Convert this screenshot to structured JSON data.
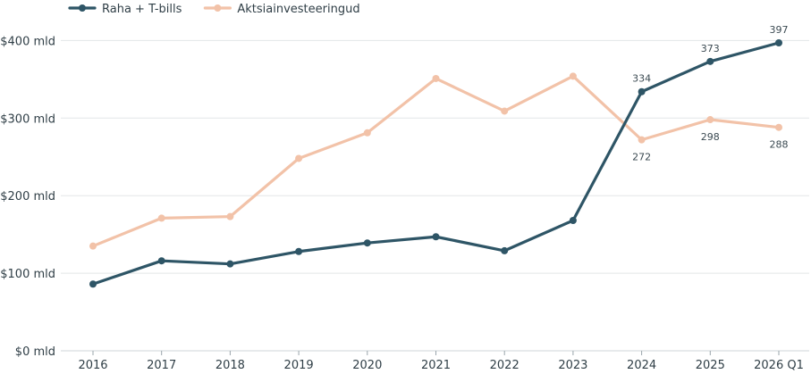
{
  "chart_data": {
    "type": "line",
    "categories": [
      "2016",
      "2017",
      "2018",
      "2019",
      "2020",
      "2021",
      "2022",
      "2023",
      "2024",
      "2025",
      "2026 Q1"
    ],
    "y_ticks": [
      {
        "value": 0,
        "label": "$0 mld"
      },
      {
        "value": 100,
        "label": "$100 mld"
      },
      {
        "value": 200,
        "label": "$200 mld"
      },
      {
        "value": 300,
        "label": "$300 mld"
      },
      {
        "value": 400,
        "label": "$400 mld"
      }
    ],
    "ylim": [
      0,
      420
    ],
    "grid": true,
    "legend": "top-left",
    "series": [
      {
        "name": "Raha + T-bills",
        "color": "#2e5566",
        "values": [
          86,
          116,
          112,
          128,
          139,
          147,
          129,
          168,
          334,
          373,
          397
        ],
        "labeled_indices": [
          8,
          9,
          10
        ],
        "label_position": "above"
      },
      {
        "name": "Aktsiainvesteeringud",
        "color": "#f2c2a8",
        "values": [
          135,
          171,
          173,
          248,
          281,
          351,
          309,
          354,
          272,
          298,
          288
        ],
        "labeled_indices": [
          8,
          9,
          10
        ],
        "label_position": "below"
      }
    ]
  }
}
